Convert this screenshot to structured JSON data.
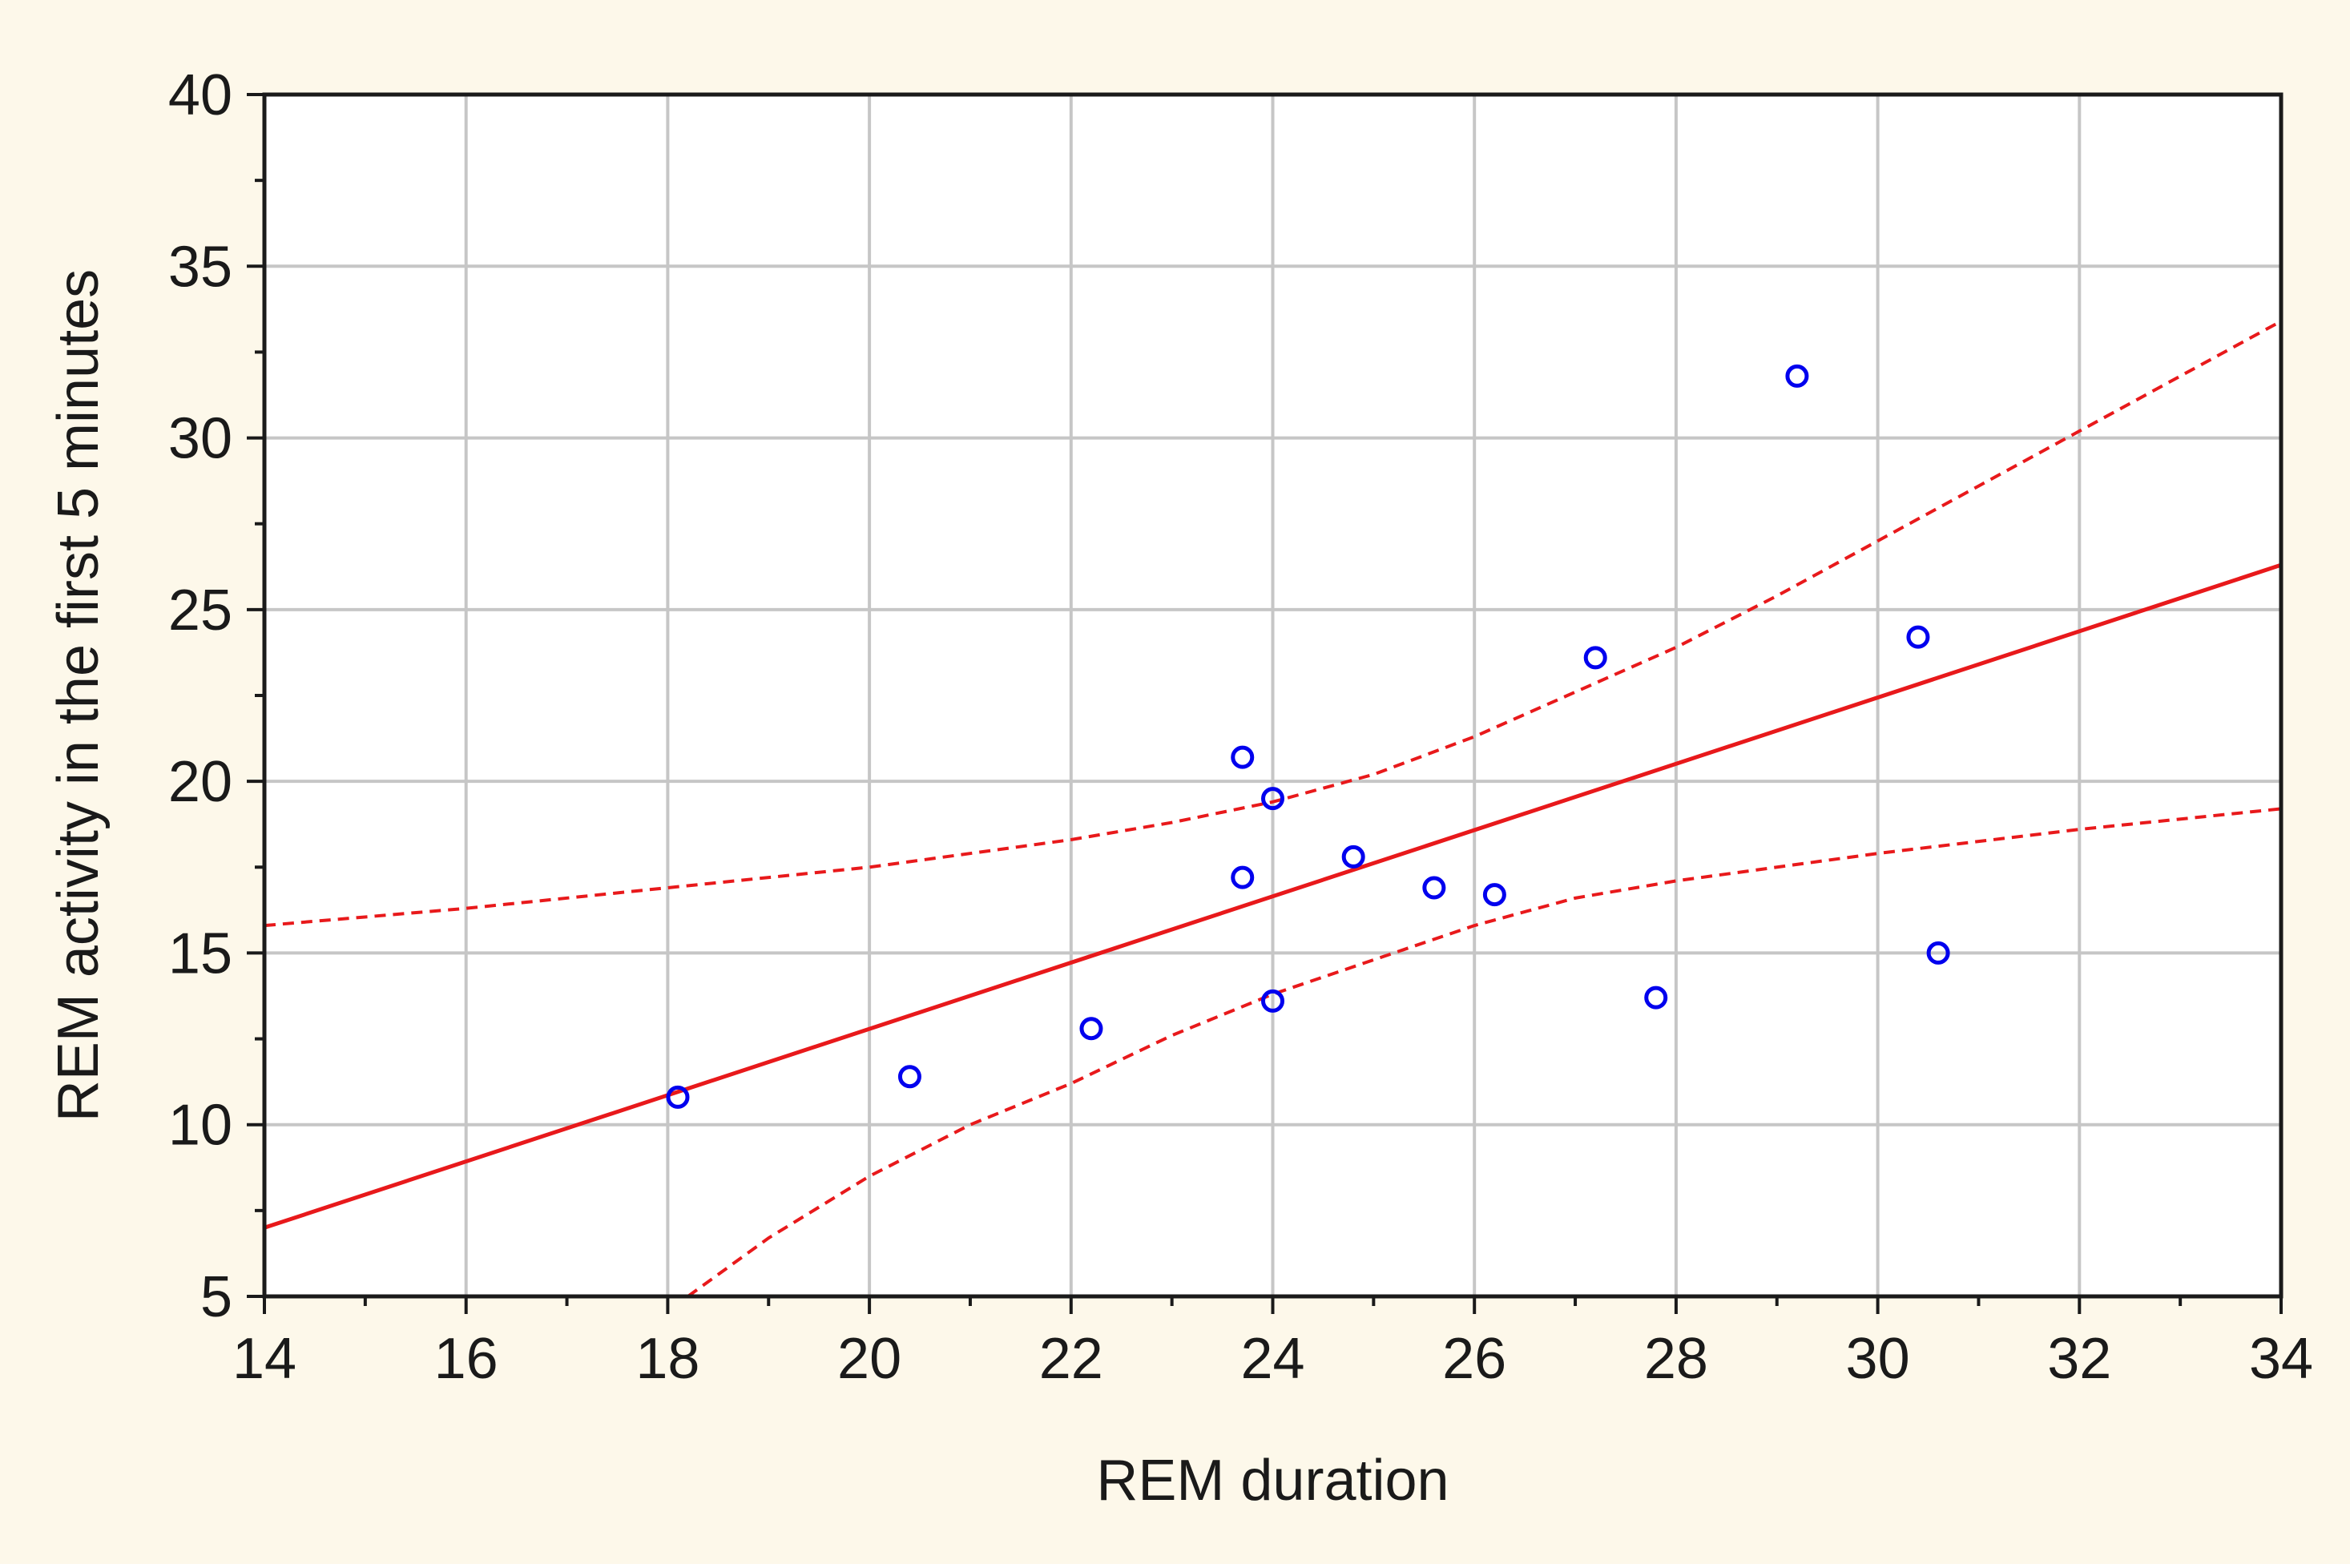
{
  "chart_data": {
    "type": "scatter",
    "title": "",
    "xlabel": "REM duration",
    "ylabel": "REM activity in the first 5 minutes",
    "xlim": [
      14,
      34
    ],
    "ylim": [
      5,
      40
    ],
    "xticks": [
      14,
      16,
      18,
      20,
      22,
      24,
      26,
      28,
      30,
      32,
      34
    ],
    "yticks": [
      5,
      10,
      15,
      20,
      25,
      30,
      35,
      40
    ],
    "xtick_labels": [
      "14",
      "16",
      "18",
      "20",
      "22",
      "24",
      "26",
      "28",
      "30",
      "32",
      "34"
    ],
    "ytick_labels": [
      "5",
      "10",
      "15",
      "20",
      "25",
      "30",
      "35",
      "40"
    ],
    "grid": true,
    "legend": "none",
    "series": [
      {
        "kind": "points",
        "marker": "open-circle",
        "color": "#0000ee",
        "x": [
          18.1,
          20.4,
          22.2,
          23.7,
          23.7,
          24.0,
          24.0,
          24.8,
          25.6,
          26.2,
          27.2,
          27.8,
          29.2,
          30.4,
          30.6
        ],
        "y": [
          10.8,
          11.4,
          12.8,
          20.7,
          17.2,
          19.5,
          13.6,
          17.8,
          16.9,
          16.7,
          23.6,
          13.7,
          31.8,
          24.2,
          15.0
        ]
      },
      {
        "kind": "fit-line",
        "style": "solid",
        "color": "#e8191b",
        "x": [
          14,
          34
        ],
        "y": [
          7.0,
          26.3
        ]
      },
      {
        "kind": "confidence-upper",
        "style": "dashed",
        "color": "#e8191b",
        "x": [
          14,
          16,
          18,
          20,
          22,
          23,
          24,
          25,
          26,
          27,
          28,
          29,
          30,
          31,
          32,
          33,
          34
        ],
        "y": [
          15.8,
          16.3,
          16.9,
          17.5,
          18.3,
          18.8,
          19.4,
          20.2,
          21.3,
          22.6,
          23.9,
          25.4,
          27.0,
          28.6,
          30.2,
          31.8,
          33.4
        ]
      },
      {
        "kind": "confidence-lower",
        "style": "dashed",
        "color": "#e8191b",
        "x": [
          18.2,
          19,
          20,
          21,
          22,
          23,
          24,
          25,
          26,
          27,
          28,
          30,
          32,
          34
        ],
        "y": [
          5.0,
          6.7,
          8.5,
          10.0,
          11.2,
          12.6,
          13.8,
          14.8,
          15.8,
          16.6,
          17.1,
          17.9,
          18.6,
          19.2
        ]
      }
    ]
  },
  "colors": {
    "frame_background": "#fdf8ea",
    "plot_background": "#ffffff",
    "grid": "#c6c6c6",
    "axis": "#1a1a1a"
  }
}
